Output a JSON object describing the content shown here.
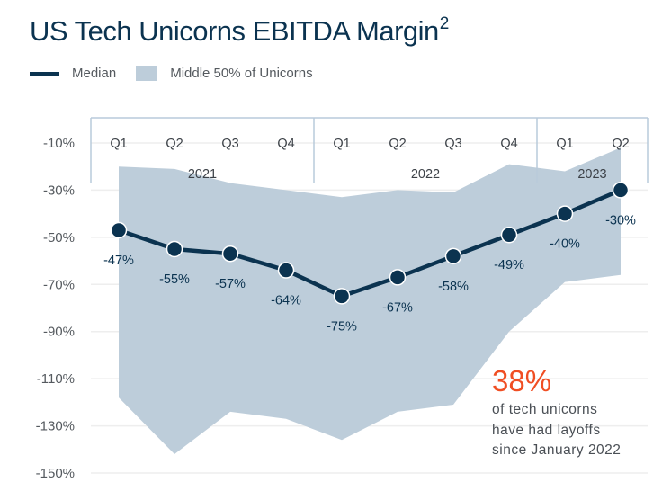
{
  "chart_data": {
    "type": "line",
    "title": "US Tech Unicorns EBITDA Margin",
    "title_superscript": "2",
    "xlabel": "",
    "ylabel": "",
    "ylim": [
      -150,
      -10
    ],
    "y_ticks": [
      "-10%",
      "-30%",
      "-50%",
      "-70%",
      "-90%",
      "-110%",
      "-130%",
      "-150%"
    ],
    "y_tick_values": [
      -10,
      -30,
      -50,
      -70,
      -90,
      -110,
      -130,
      -150
    ],
    "grid": true,
    "legend_placement": "top-left",
    "categories": [
      "Q1",
      "Q2",
      "Q3",
      "Q4",
      "Q1",
      "Q2",
      "Q3",
      "Q4",
      "Q1",
      "Q2"
    ],
    "year_groups": [
      {
        "label": "2021",
        "start": 0,
        "end": 3
      },
      {
        "label": "2022",
        "start": 4,
        "end": 7
      },
      {
        "label": "2023",
        "start": 8,
        "end": 9
      }
    ],
    "series": [
      {
        "name": "Median",
        "type": "line",
        "color": "#0b3350",
        "values": [
          -47,
          -55,
          -57,
          -64,
          -75,
          -67,
          -58,
          -49,
          -40,
          -30
        ],
        "data_labels": [
          "-47%",
          "-55%",
          "-57%",
          "-64%",
          "-75%",
          "-67%",
          "-58%",
          "-49%",
          "-40%",
          "-30%"
        ]
      },
      {
        "name": "Middle 50% of Unicorns",
        "type": "area-band",
        "color": "#bdcdda",
        "upper": [
          -20,
          -21,
          -27,
          -30,
          -33,
          -30,
          -31,
          -19,
          -22,
          -12
        ],
        "lower": [
          -118,
          -142,
          -124,
          -127,
          -136,
          -124,
          -121,
          -90,
          -69,
          -66
        ]
      }
    ],
    "annotation": {
      "headline": "38%",
      "headline_color": "#f04e23",
      "lines": [
        "of tech unicorns",
        "have had layoffs",
        "since January 2022"
      ]
    }
  },
  "legend": {
    "median_label": "Median",
    "band_label": "Middle 50% of Unicorns"
  }
}
